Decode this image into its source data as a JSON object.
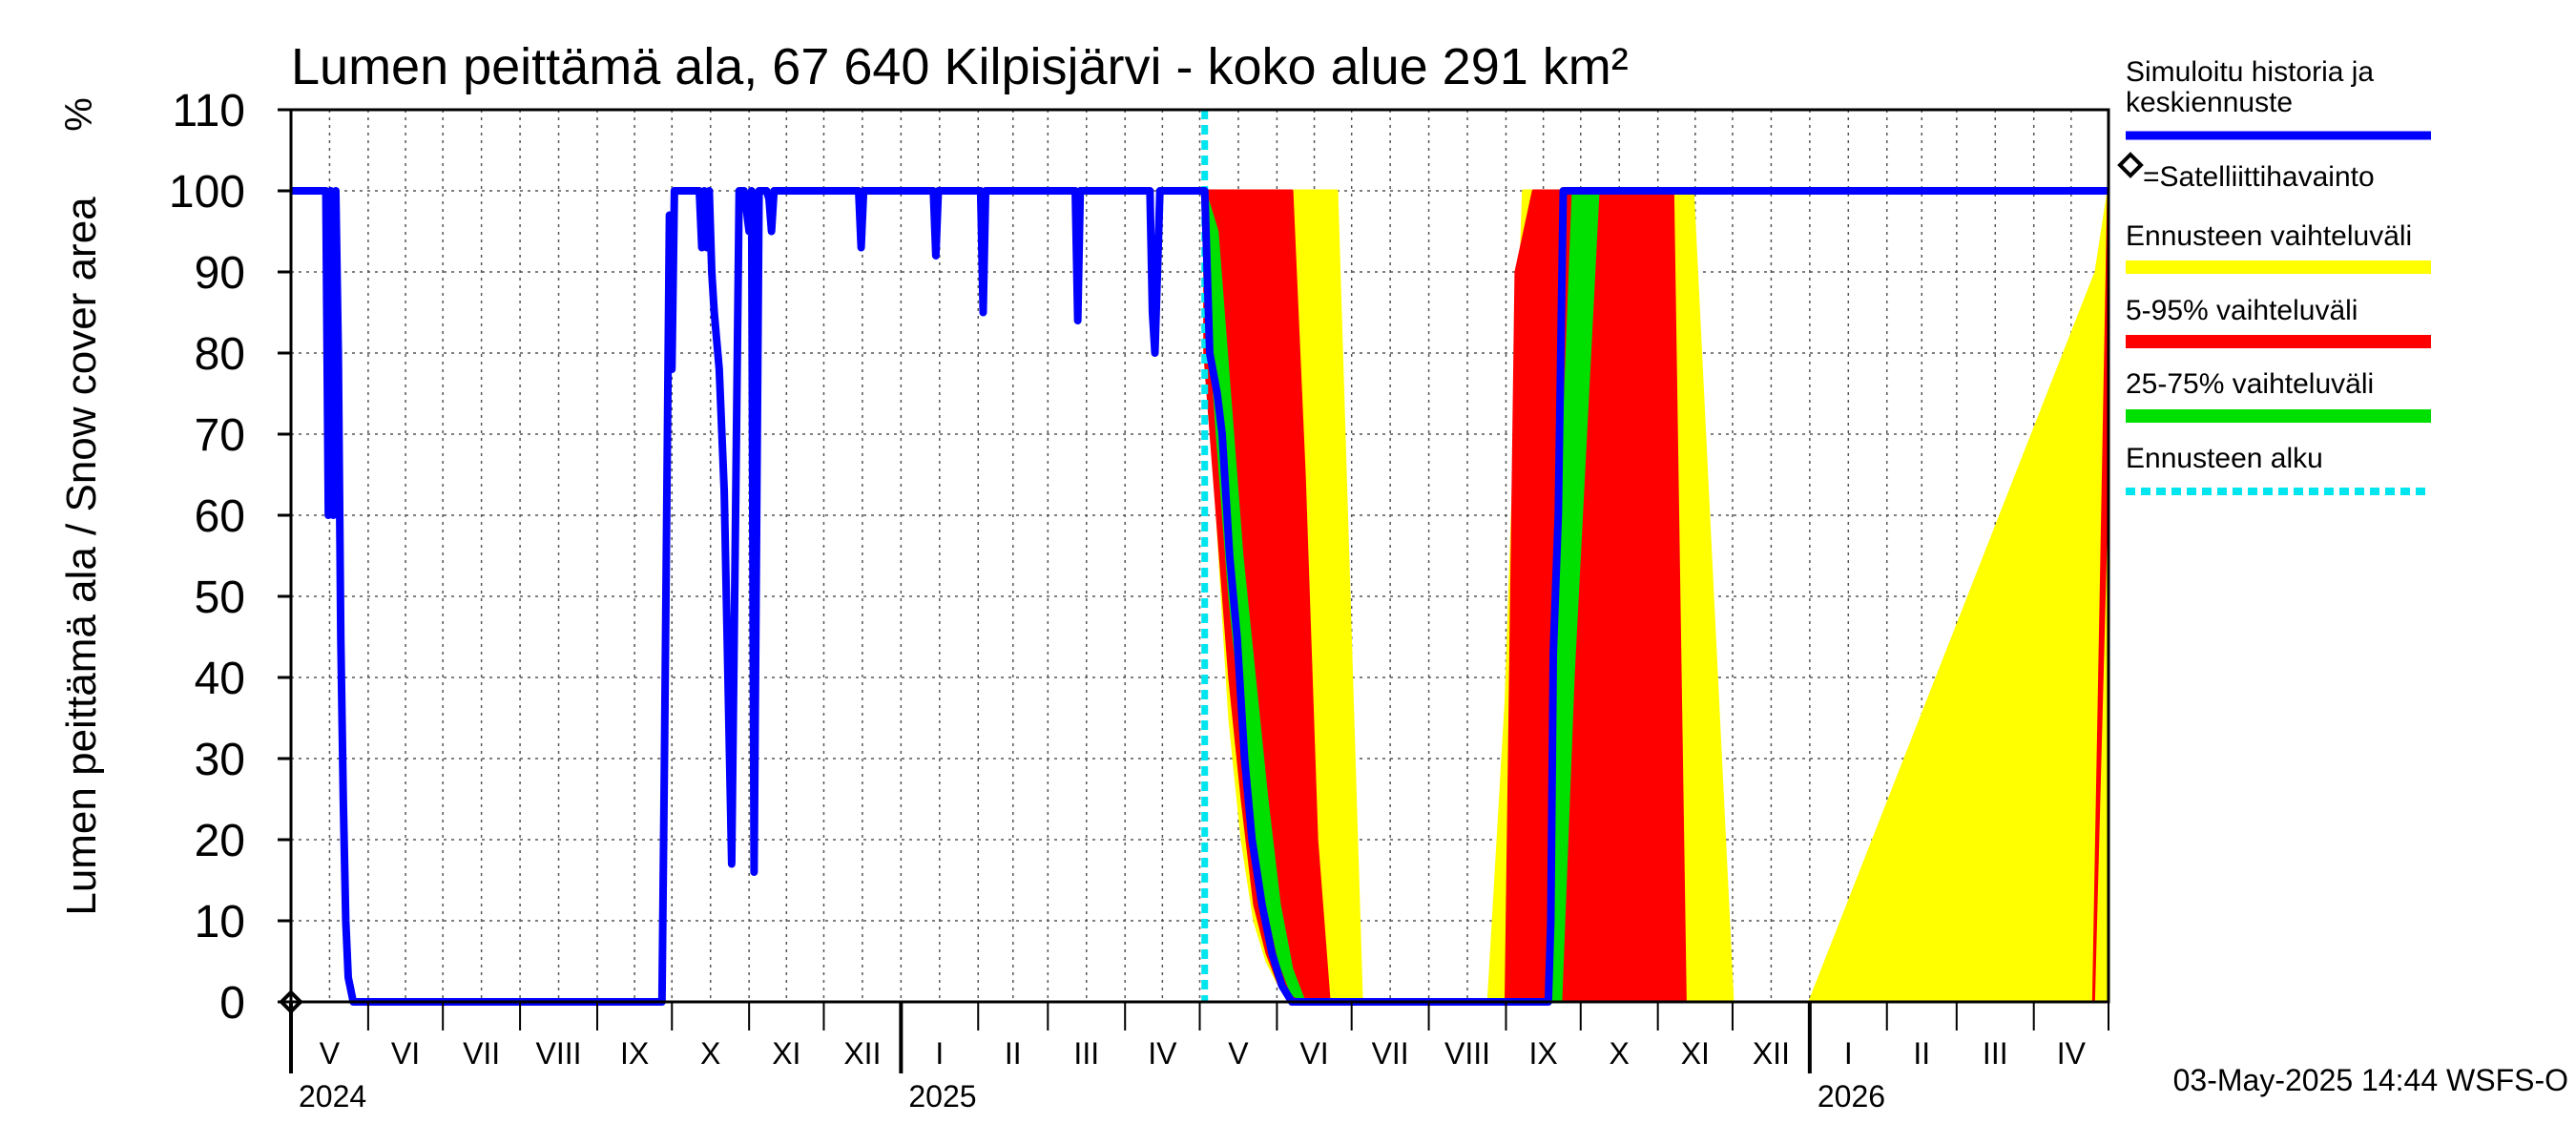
{
  "chart_data": {
    "type": "area",
    "title": "Lumen peittämä ala, 67 640 Kilpisjärvi - koko alue 291 km²",
    "ylabel": "Lumen peittämä ala / Snow cover area",
    "yunit": "%",
    "ylim": [
      0,
      110
    ],
    "yticks": [
      0,
      10,
      20,
      30,
      40,
      50,
      60,
      70,
      80,
      90,
      100,
      110
    ],
    "xlim": [
      "2024-05-01",
      "2026-05-01"
    ],
    "grid": true,
    "legend_placement": "right",
    "months": [
      {
        "label": "V",
        "start": "2024-05-01"
      },
      {
        "label": "VI",
        "start": "2024-06-01"
      },
      {
        "label": "VII",
        "start": "2024-07-01"
      },
      {
        "label": "VIII",
        "start": "2024-08-01"
      },
      {
        "label": "IX",
        "start": "2024-09-01"
      },
      {
        "label": "X",
        "start": "2024-10-01"
      },
      {
        "label": "XI",
        "start": "2024-11-01"
      },
      {
        "label": "XII",
        "start": "2024-12-01"
      },
      {
        "label": "I",
        "start": "2025-01-01"
      },
      {
        "label": "II",
        "start": "2025-02-01"
      },
      {
        "label": "III",
        "start": "2025-03-01"
      },
      {
        "label": "IV",
        "start": "2025-04-01"
      },
      {
        "label": "V",
        "start": "2025-05-01"
      },
      {
        "label": "VI",
        "start": "2025-06-01"
      },
      {
        "label": "VII",
        "start": "2025-07-01"
      },
      {
        "label": "VIII",
        "start": "2025-08-01"
      },
      {
        "label": "IX",
        "start": "2025-09-01"
      },
      {
        "label": "X",
        "start": "2025-10-01"
      },
      {
        "label": "XI",
        "start": "2025-11-01"
      },
      {
        "label": "XII",
        "start": "2025-12-01"
      },
      {
        "label": "I",
        "start": "2026-01-01"
      },
      {
        "label": "II",
        "start": "2026-02-01"
      },
      {
        "label": "III",
        "start": "2026-03-01"
      },
      {
        "label": "IV",
        "start": "2026-04-01"
      }
    ],
    "years": [
      {
        "label": "2024",
        "date": "2024-05-01"
      },
      {
        "label": "2025",
        "date": "2025-01-01"
      },
      {
        "label": "2026",
        "date": "2026-01-01"
      }
    ],
    "forecast_start": "2025-05-03",
    "satellite_observations": [
      {
        "x": "2024-05-01",
        "y": 0
      }
    ],
    "series": [
      {
        "name": "Ennusteen vaihteluväli",
        "color": "#ffff00",
        "kind": "band",
        "x": [
          "2025-05-03",
          "2025-05-08",
          "2025-05-13",
          "2025-05-18",
          "2025-05-23",
          "2025-05-28",
          "2025-06-02",
          "2025-06-07",
          "2025-06-12",
          "2025-06-17",
          "2025-06-20",
          "2025-06-25",
          "2025-07-05",
          "2025-08-25",
          "2025-09-01",
          "2025-09-08",
          "2025-09-15",
          "2025-09-22",
          "2025-09-29",
          "2025-10-06",
          "2025-10-13",
          "2025-10-20",
          "2025-10-27",
          "2025-11-03",
          "2025-11-10",
          "2025-11-15",
          "2025-12-01",
          "2026-01-01",
          "2026-04-26",
          "2026-05-01"
        ],
        "upper": [
          100,
          100,
          100,
          100,
          100,
          100,
          100,
          100,
          100,
          100,
          100,
          100,
          0,
          0,
          37,
          100,
          100,
          100,
          100,
          100,
          100,
          100,
          100,
          100,
          100,
          100,
          0,
          0,
          90,
          100
        ],
        "lower": [
          85,
          60,
          35,
          20,
          10,
          5,
          2,
          0,
          0,
          0,
          0,
          0,
          0,
          0,
          0,
          0,
          0,
          0,
          0,
          0,
          0,
          0,
          0,
          0,
          0,
          0,
          0,
          0,
          0,
          0
        ]
      },
      {
        "name": "5-95% vaihteluväli",
        "color": "#ff0000",
        "kind": "band",
        "x": [
          "2025-05-03",
          "2025-05-08",
          "2025-05-13",
          "2025-05-18",
          "2025-05-23",
          "2025-05-28",
          "2025-06-02",
          "2025-06-07",
          "2025-06-12",
          "2025-06-17",
          "2025-06-22",
          "2025-09-01",
          "2025-09-05",
          "2025-09-12",
          "2025-09-19",
          "2025-09-26",
          "2025-10-03",
          "2025-10-10",
          "2025-10-17",
          "2025-10-24",
          "2025-10-31",
          "2025-11-07",
          "2025-11-12",
          "2026-04-25",
          "2026-05-01"
        ],
        "upper": [
          100,
          100,
          100,
          100,
          100,
          100,
          100,
          100,
          65,
          20,
          0,
          0,
          90,
          100,
          100,
          100,
          100,
          100,
          100,
          100,
          100,
          100,
          0,
          0,
          100
        ],
        "lower": [
          80,
          60,
          40,
          25,
          12,
          6,
          2,
          0,
          0,
          0,
          0,
          0,
          0,
          0,
          0,
          0,
          0,
          0,
          0,
          0,
          0,
          0,
          0,
          0,
          70
        ]
      },
      {
        "name": "25-75% vaihteluväli",
        "color": "#00e000",
        "kind": "band",
        "x": [
          "2025-05-03",
          "2025-05-08",
          "2025-05-13",
          "2025-05-18",
          "2025-05-23",
          "2025-05-28",
          "2025-06-02",
          "2025-06-07",
          "2025-06-12",
          "2025-09-18",
          "2025-09-23",
          "2025-09-28",
          "2025-10-03",
          "2025-10-08",
          "2025-10-13",
          "2025-10-18"
        ],
        "upper": [
          100,
          95,
          75,
          55,
          40,
          25,
          12,
          4,
          0,
          0,
          60,
          100,
          100,
          100,
          100,
          100
        ],
        "lower": [
          92,
          70,
          50,
          35,
          22,
          12,
          5,
          1,
          0,
          0,
          0,
          40,
          70,
          100,
          100,
          100
        ]
      },
      {
        "name": "Simuloitu historia ja keskiennuste",
        "color": "#0000ff",
        "kind": "line",
        "x": [
          "2024-05-01",
          "2024-05-15",
          "2024-05-16",
          "2024-05-17",
          "2024-05-18",
          "2024-05-19",
          "2024-05-20",
          "2024-05-21",
          "2024-05-22",
          "2024-05-23",
          "2024-05-24",
          "2024-05-26",
          "2024-05-28",
          "2024-05-30",
          "2024-06-01",
          "2024-06-05",
          "2024-09-25",
          "2024-09-27",
          "2024-09-28",
          "2024-09-30",
          "2024-10-01",
          "2024-10-02",
          "2024-10-03",
          "2024-10-05",
          "2024-10-12",
          "2024-10-13",
          "2024-10-14",
          "2024-10-15",
          "2024-10-16",
          "2024-10-17",
          "2024-10-18",
          "2024-10-20",
          "2024-10-22",
          "2024-10-25",
          "2024-10-28",
          "2024-10-30",
          "2024-11-01",
          "2024-11-02",
          "2024-11-03",
          "2024-11-05",
          "2024-11-08",
          "2024-11-09",
          "2024-11-10",
          "2024-11-11",
          "2024-11-12",
          "2024-11-13",
          "2024-11-14",
          "2024-11-15",
          "2024-11-16",
          "2024-11-17",
          "2024-12-15",
          "2024-12-16",
          "2024-12-17",
          "2025-01-14",
          "2025-01-15",
          "2025-01-16",
          "2025-02-02",
          "2025-02-03",
          "2025-02-04",
          "2025-03-12",
          "2025-03-13",
          "2025-03-14",
          "2025-04-11",
          "2025-04-12",
          "2025-04-13",
          "2025-04-15",
          "2025-05-03",
          "2025-05-05",
          "2025-05-08",
          "2025-05-10",
          "2025-05-13",
          "2025-05-16",
          "2025-05-19",
          "2025-05-22",
          "2025-05-26",
          "2025-05-30",
          "2025-06-03",
          "2025-06-07",
          "2025-06-10",
          "2025-06-13",
          "2025-06-16",
          "2025-09-18",
          "2025-09-19",
          "2025-09-20",
          "2025-09-22",
          "2025-09-24",
          "2026-05-01"
        ],
        "y": [
          100,
          100,
          60,
          100,
          60,
          100,
          80,
          45,
          25,
          10,
          3,
          0,
          0,
          0,
          0,
          0,
          0,
          0,
          30,
          97,
          78,
          100,
          100,
          100,
          100,
          93,
          100,
          93,
          100,
          90,
          85,
          78,
          63,
          17,
          100,
          100,
          95,
          100,
          16,
          100,
          100,
          99,
          95,
          100,
          100,
          100,
          100,
          100,
          100,
          100,
          100,
          93,
          100,
          100,
          92,
          100,
          100,
          85,
          100,
          100,
          84,
          100,
          100,
          85,
          80,
          100,
          100,
          80,
          75,
          70,
          55,
          45,
          30,
          20,
          12,
          6,
          2,
          0,
          0,
          0,
          0,
          0,
          10,
          43,
          60,
          100,
          100
        ]
      },
      {
        "name": "Ennusteen alku",
        "color": "#00e5ee",
        "kind": "vline"
      }
    ],
    "legend": [
      {
        "label": "Simuloitu historia ja keskiennuste",
        "color": "#0000ff"
      },
      {
        "label": "=Satelliittihavainto",
        "color": "#000000"
      },
      {
        "label": "Ennusteen vaihteluväli",
        "color": "#ffff00"
      },
      {
        "label": "5-95% vaihteluväli",
        "color": "#ff0000"
      },
      {
        "label": "25-75% vaihteluväli",
        "color": "#00e000"
      },
      {
        "label": "Ennusteen alku",
        "color": "#00e5ee"
      }
    ],
    "footer": "03-May-2025 14:44 WSFS-O"
  }
}
